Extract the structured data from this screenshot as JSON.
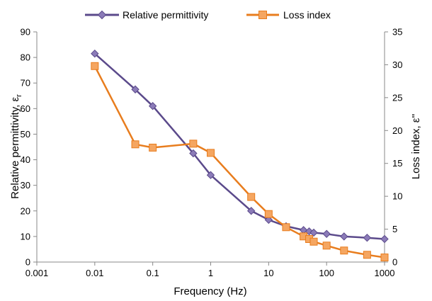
{
  "chart_data": {
    "type": "line",
    "xlabel": "Frequency (Hz)",
    "ylabel": "Relative permittivity, ε",
    "ylabel_sub": "r",
    "y2label": "Loss index, ε''",
    "x_scale": "log",
    "xlim": [
      0.001,
      1000
    ],
    "x_ticks": [
      "0.001",
      "0.01",
      "0.1",
      "1",
      "10",
      "100",
      "1000"
    ],
    "ylim": [
      0,
      90
    ],
    "y_ticks": [
      "0",
      "10",
      "20",
      "30",
      "40",
      "50",
      "60",
      "70",
      "80",
      "90"
    ],
    "y2lim": [
      0,
      35
    ],
    "y2_ticks": [
      "0",
      "5",
      "10",
      "15",
      "20",
      "25",
      "30",
      "35"
    ],
    "grid": false,
    "legend_position": "top",
    "series": [
      {
        "name": "Relative permittivity",
        "axis": "left",
        "color": "#5B4A8B",
        "marker": "diamond",
        "x": [
          0.01,
          0.05,
          0.1,
          0.5,
          1,
          5,
          10,
          20,
          40,
          50,
          60,
          100,
          200,
          500,
          1000
        ],
        "y": [
          81.5,
          67.5,
          61,
          42.5,
          34,
          20,
          16.5,
          14,
          12.5,
          12,
          11.5,
          11,
          10,
          9.5,
          9
        ]
      },
      {
        "name": "Loss index",
        "axis": "right",
        "color": "#E87D1E",
        "marker": "square",
        "x": [
          0.01,
          0.05,
          0.1,
          0.5,
          1,
          5,
          10,
          20,
          40,
          50,
          60,
          100,
          200,
          500,
          1000
        ],
        "y": [
          29.8,
          17.9,
          17.4,
          18.0,
          16.6,
          9.9,
          7.3,
          5.3,
          3.9,
          3.5,
          3.1,
          2.5,
          1.75,
          1.1,
          0.7
        ]
      }
    ]
  }
}
